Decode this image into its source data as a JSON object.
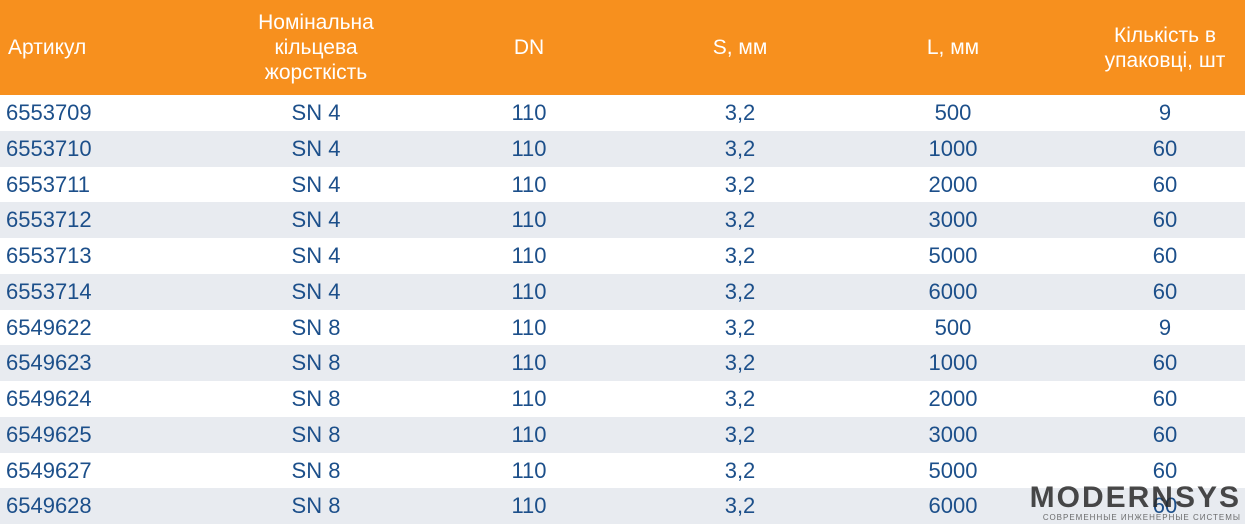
{
  "table": {
    "header": [
      "Артикул",
      "Номінальна кільцева жорсткість",
      "DN",
      "S, мм",
      "L, мм",
      "Кількість в упаковці, шт"
    ],
    "rows": [
      [
        "6553709",
        "SN 4",
        "110",
        "3,2",
        "500",
        "9"
      ],
      [
        "6553710",
        "SN 4",
        "110",
        "3,2",
        "1000",
        "60"
      ],
      [
        "6553711",
        "SN 4",
        "110",
        "3,2",
        "2000",
        "60"
      ],
      [
        "6553712",
        "SN 4",
        "110",
        "3,2",
        "3000",
        "60"
      ],
      [
        "6553713",
        "SN 4",
        "110",
        "3,2",
        "5000",
        "60"
      ],
      [
        "6553714",
        "SN 4",
        "110",
        "3,2",
        "6000",
        "60"
      ],
      [
        "6549622",
        "SN 8",
        "110",
        "3,2",
        "500",
        "9"
      ],
      [
        "6549623",
        "SN 8",
        "110",
        "3,2",
        "1000",
        "60"
      ],
      [
        "6549624",
        "SN 8",
        "110",
        "3,2",
        "2000",
        "60"
      ],
      [
        "6549625",
        "SN 8",
        "110",
        "3,2",
        "3000",
        "60"
      ],
      [
        "6549627",
        "SN 8",
        "110",
        "3,2",
        "5000",
        "60"
      ],
      [
        "6549628",
        "SN 8",
        "110",
        "3,2",
        "6000",
        "60"
      ]
    ]
  },
  "logo": {
    "name": "MODERNSYS",
    "tagline": "СОВРЕМЕННЫЕ ИНЖЕНЕРНЫЕ СИСТЕМЫ"
  }
}
